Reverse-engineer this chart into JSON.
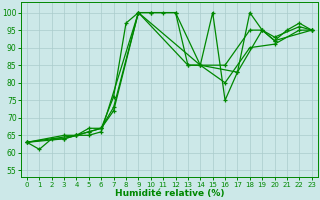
{
  "xlabel": "Humidité relative (%)",
  "xlim": [
    -0.5,
    23.5
  ],
  "ylim": [
    53,
    103
  ],
  "yticks": [
    55,
    60,
    65,
    70,
    75,
    80,
    85,
    90,
    95,
    100
  ],
  "xticks": [
    0,
    1,
    2,
    3,
    4,
    5,
    6,
    7,
    8,
    9,
    10,
    11,
    12,
    13,
    14,
    15,
    16,
    17,
    18,
    19,
    20,
    21,
    22,
    23
  ],
  "bg_color": "#cce8e8",
  "grid_color": "#aacccc",
  "line_color": "#008800",
  "marker": "+",
  "markersize": 3,
  "linewidth": 0.9,
  "lines": [
    [
      [
        0,
        63
      ],
      [
        1,
        61
      ],
      [
        2,
        64
      ],
      [
        3,
        64
      ],
      [
        4,
        65
      ],
      [
        5,
        66
      ],
      [
        6,
        67
      ],
      [
        7,
        76
      ],
      [
        8,
        97
      ],
      [
        9,
        100
      ],
      [
        10,
        100
      ],
      [
        11,
        100
      ],
      [
        12,
        100
      ],
      [
        13,
        85
      ],
      [
        14,
        85
      ],
      [
        15,
        100
      ],
      [
        16,
        75
      ],
      [
        17,
        83
      ],
      [
        18,
        100
      ],
      [
        19,
        95
      ],
      [
        20,
        92
      ],
      [
        21,
        95
      ],
      [
        22,
        97
      ],
      [
        23,
        95
      ]
    ],
    [
      [
        0,
        63
      ],
      [
        3,
        64
      ],
      [
        4,
        65
      ],
      [
        5,
        67
      ],
      [
        6,
        67
      ],
      [
        7,
        73
      ],
      [
        9,
        100
      ],
      [
        10,
        100
      ],
      [
        12,
        100
      ],
      [
        14,
        85
      ],
      [
        16,
        80
      ],
      [
        18,
        90
      ],
      [
        20,
        91
      ],
      [
        22,
        95
      ],
      [
        23,
        95
      ]
    ],
    [
      [
        0,
        63
      ],
      [
        3,
        65
      ],
      [
        4,
        65
      ],
      [
        5,
        66
      ],
      [
        6,
        67
      ],
      [
        7,
        72
      ],
      [
        9,
        100
      ],
      [
        13,
        85
      ],
      [
        16,
        85
      ],
      [
        18,
        95
      ],
      [
        19,
        95
      ],
      [
        20,
        92
      ],
      [
        23,
        95
      ]
    ],
    [
      [
        0,
        63
      ],
      [
        4,
        65
      ],
      [
        5,
        65
      ],
      [
        6,
        66
      ],
      [
        9,
        100
      ],
      [
        14,
        85
      ],
      [
        17,
        83
      ],
      [
        19,
        95
      ],
      [
        20,
        93
      ],
      [
        22,
        96
      ],
      [
        23,
        95
      ]
    ]
  ]
}
